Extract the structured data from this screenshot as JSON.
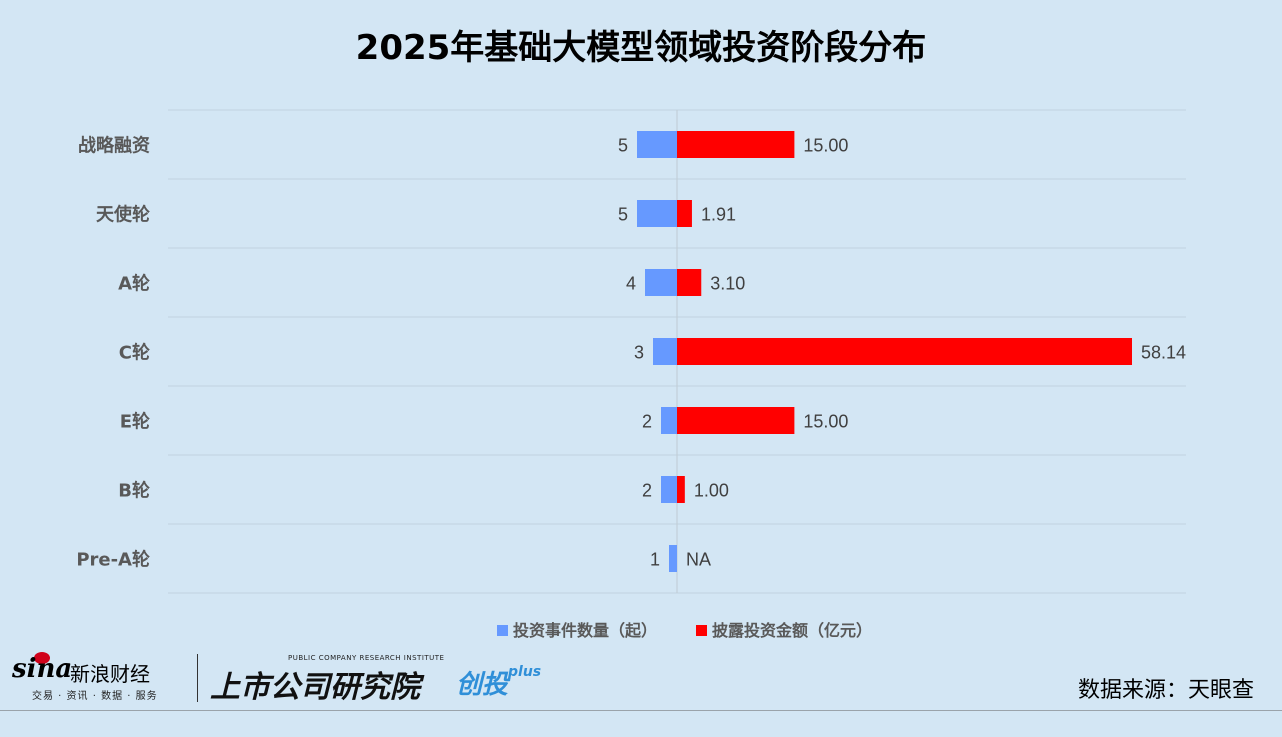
{
  "chart_data": {
    "type": "bar",
    "title": "2025年基础大模型领域投资阶段分布",
    "categories": [
      "战略融资",
      "天使轮",
      "A轮",
      "C轮",
      "E轮",
      "B轮",
      "Pre-A轮"
    ],
    "series": [
      {
        "name": "投资事件数量（起）",
        "color": "#6699ff",
        "values": [
          5,
          5,
          4,
          3,
          2,
          2,
          1
        ],
        "labels": [
          "5",
          "5",
          "4",
          "3",
          "2",
          "2",
          "1"
        ]
      },
      {
        "name": "披露投资金额（亿元）",
        "color": "#ff0000",
        "values": [
          15.0,
          1.91,
          3.1,
          58.14,
          15.0,
          1.0,
          null
        ],
        "labels": [
          "15.00",
          "1.91",
          "3.10",
          "58.14",
          "15.00",
          "1.00",
          "NA"
        ]
      }
    ],
    "legend_position": "bottom",
    "grid": true
  },
  "footer": {
    "sina_logo_text": "sina",
    "sina_cn": "新浪财经",
    "sina_sub": "交易 · 资讯 · 数据 · 服务",
    "lc_en": "PUBLIC COMPANY RESEARCH INSTITUTE",
    "lc_cn": "上市公司研究院",
    "lc_plus": "创投",
    "lc_plus_sup": "plus",
    "source": "数据来源：天眼查"
  }
}
